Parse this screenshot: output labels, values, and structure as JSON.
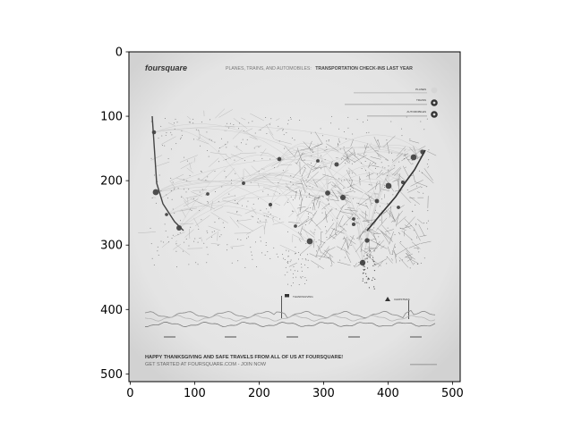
{
  "chart_data": {
    "type": "image",
    "x_ticks": [
      0,
      100,
      200,
      300,
      400,
      500
    ],
    "y_ticks": [
      0,
      100,
      200,
      300,
      400,
      500
    ],
    "xlim": [
      -2,
      512
    ],
    "ylim": [
      512,
      0
    ],
    "grid": false,
    "image_content": {
      "brand": "foursquare",
      "header": "PLANES, TRAINS, AND AUTOMOBILES:",
      "header_bold": "TRANSPORTATION CHECK-INS LAST YEAR",
      "legend": [
        {
          "label": "PLANES",
          "icon": "plane-icon"
        },
        {
          "label": "TRAINS",
          "icon": "train-icon"
        },
        {
          "label": "AUTOMOBILES",
          "icon": "car-icon"
        }
      ],
      "event_labels": [
        "THANKSGIVING",
        "CHRISTMAS"
      ],
      "footer_line1": "HAPPY THANKSGIVING AND SAFE TRAVELS FROM ALL OF US AT FOURSQUARE!",
      "footer_line2": "GET STARTED AT FOURSQUARE.COM - JOIN NOW"
    }
  }
}
